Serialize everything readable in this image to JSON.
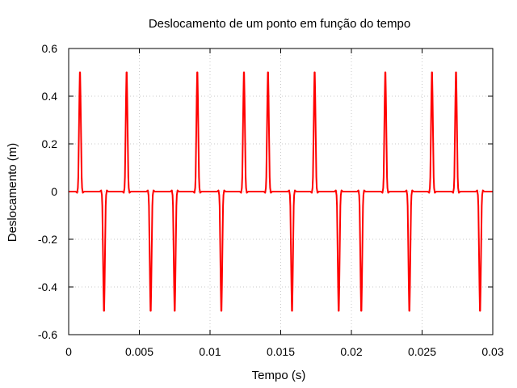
{
  "chart_data": {
    "type": "line",
    "title": "Deslocamento de um ponto em função do tempo",
    "xlabel": "Tempo (s)",
    "ylabel": "Deslocamento (m)",
    "xlim": [
      0,
      0.03
    ],
    "ylim": [
      -0.6,
      0.6
    ],
    "x_ticks": [
      0,
      0.005,
      0.01,
      0.015,
      0.02,
      0.025,
      0.03
    ],
    "x_tick_labels": [
      "0",
      "0.005",
      "0.01",
      "0.015",
      "0.02",
      "0.025",
      "0.03"
    ],
    "y_ticks": [
      0.6,
      0.4,
      0.2,
      0,
      -0.2,
      -0.4,
      -0.6
    ],
    "y_tick_labels": [
      "0.6",
      "0.4",
      "0.2",
      "0",
      "-0.2",
      "-0.4",
      "-0.6"
    ],
    "grid": true,
    "legend": "none",
    "series": [
      {
        "color": "#ff0000",
        "baseline": 0,
        "pulses": [
          {
            "t": 0.0008,
            "amp": 0.5
          },
          {
            "t": 0.0025,
            "amp": -0.5
          },
          {
            "t": 0.0041,
            "amp": 0.5
          },
          {
            "t": 0.0058,
            "amp": -0.5
          },
          {
            "t": 0.0075,
            "amp": -0.5
          },
          {
            "t": 0.0091,
            "amp": 0.5
          },
          {
            "t": 0.0108,
            "amp": -0.5
          },
          {
            "t": 0.0124,
            "amp": 0.5
          },
          {
            "t": 0.0141,
            "amp": 0.5
          },
          {
            "t": 0.0158,
            "amp": -0.5
          },
          {
            "t": 0.0174,
            "amp": 0.5
          },
          {
            "t": 0.0191,
            "amp": -0.5
          },
          {
            "t": 0.0207,
            "amp": -0.5
          },
          {
            "t": 0.0224,
            "amp": 0.5
          },
          {
            "t": 0.0241,
            "amp": -0.5
          },
          {
            "t": 0.0257,
            "amp": 0.5
          },
          {
            "t": 0.0274,
            "amp": 0.5
          },
          {
            "t": 0.0291,
            "amp": -0.5
          }
        ]
      }
    ]
  }
}
